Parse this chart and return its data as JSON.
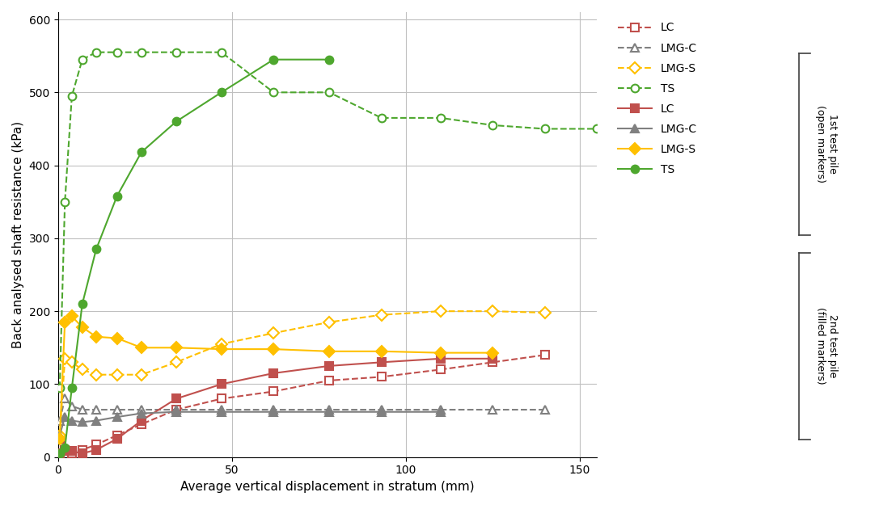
{
  "xlabel": "Average vertical displacement in stratum (mm)",
  "ylabel": "Back analysed shaft resistance (kPa)",
  "xlim": [
    0,
    155
  ],
  "ylim": [
    0,
    610
  ],
  "xticks": [
    0,
    50,
    100,
    150
  ],
  "yticks": [
    0,
    100,
    200,
    300,
    400,
    500,
    600
  ],
  "series": [
    {
      "legend_label": "LC",
      "color": "#c0504d",
      "linestyle": "--",
      "marker": "s",
      "filled": false,
      "x": [
        0.5,
        2,
        4,
        7,
        11,
        17,
        24,
        34,
        47,
        62,
        78,
        93,
        110,
        125,
        140
      ],
      "y": [
        25,
        8,
        5,
        10,
        17,
        30,
        45,
        65,
        80,
        90,
        105,
        110,
        120,
        130,
        140
      ]
    },
    {
      "legend_label": "LMG-C",
      "color": "#808080",
      "linestyle": "--",
      "marker": "^",
      "filled": false,
      "x": [
        0.5,
        2,
        4,
        7,
        11,
        17,
        24,
        34,
        47,
        62,
        78,
        93,
        110,
        125,
        140
      ],
      "y": [
        50,
        80,
        70,
        65,
        65,
        65,
        65,
        65,
        65,
        65,
        65,
        65,
        65,
        65,
        65
      ]
    },
    {
      "legend_label": "LMG-S",
      "color": "#ffc000",
      "linestyle": "--",
      "marker": "D",
      "filled": false,
      "x": [
        0.5,
        2,
        4,
        7,
        11,
        17,
        24,
        34,
        47,
        62,
        78,
        93,
        110,
        125,
        140
      ],
      "y": [
        30,
        135,
        130,
        120,
        113,
        113,
        113,
        130,
        155,
        170,
        185,
        195,
        200,
        200,
        198
      ]
    },
    {
      "legend_label": "TS",
      "color": "#4ea72e",
      "linestyle": "--",
      "marker": "o",
      "filled": false,
      "x": [
        0.5,
        2,
        4,
        7,
        11,
        17,
        24,
        34,
        47,
        62,
        78,
        93,
        110,
        125,
        140,
        155
      ],
      "y": [
        95,
        350,
        495,
        545,
        555,
        555,
        555,
        555,
        555,
        500,
        500,
        465,
        465,
        455,
        450,
        450
      ]
    },
    {
      "legend_label": "LC",
      "color": "#c0504d",
      "linestyle": "-",
      "marker": "s",
      "filled": true,
      "x": [
        0.5,
        2,
        4,
        7,
        11,
        17,
        24,
        34,
        47,
        62,
        78,
        93,
        110,
        125
      ],
      "y": [
        5,
        10,
        8,
        5,
        10,
        25,
        50,
        80,
        100,
        115,
        125,
        130,
        135,
        135
      ]
    },
    {
      "legend_label": "LMG-C",
      "color": "#808080",
      "linestyle": "-",
      "marker": "^",
      "filled": true,
      "x": [
        0.5,
        2,
        4,
        7,
        11,
        17,
        24,
        34,
        47,
        62,
        78,
        93,
        110
      ],
      "y": [
        30,
        55,
        50,
        48,
        50,
        55,
        60,
        62,
        62,
        62,
        62,
        62,
        62
      ]
    },
    {
      "legend_label": "LMG-S",
      "color": "#ffc000",
      "linestyle": "-",
      "marker": "D",
      "filled": true,
      "x": [
        0.5,
        2,
        4,
        7,
        11,
        17,
        24,
        34,
        47,
        62,
        78,
        93,
        110,
        125
      ],
      "y": [
        25,
        185,
        193,
        178,
        165,
        163,
        150,
        150,
        148,
        148,
        145,
        145,
        143,
        143
      ]
    },
    {
      "legend_label": "TS",
      "color": "#4ea72e",
      "linestyle": "-",
      "marker": "o",
      "filled": true,
      "x": [
        0.5,
        2,
        4,
        7,
        11,
        17,
        24,
        34,
        47,
        62,
        78
      ],
      "y": [
        5,
        13,
        95,
        210,
        285,
        358,
        418,
        460,
        500,
        545,
        545
      ]
    }
  ],
  "annotation_1st": "1st test pile\n(open markers)",
  "annotation_2nd": "2nd test pile\n(filled markers)",
  "background_color": "#ffffff",
  "grid_color": "#c0c0c0"
}
